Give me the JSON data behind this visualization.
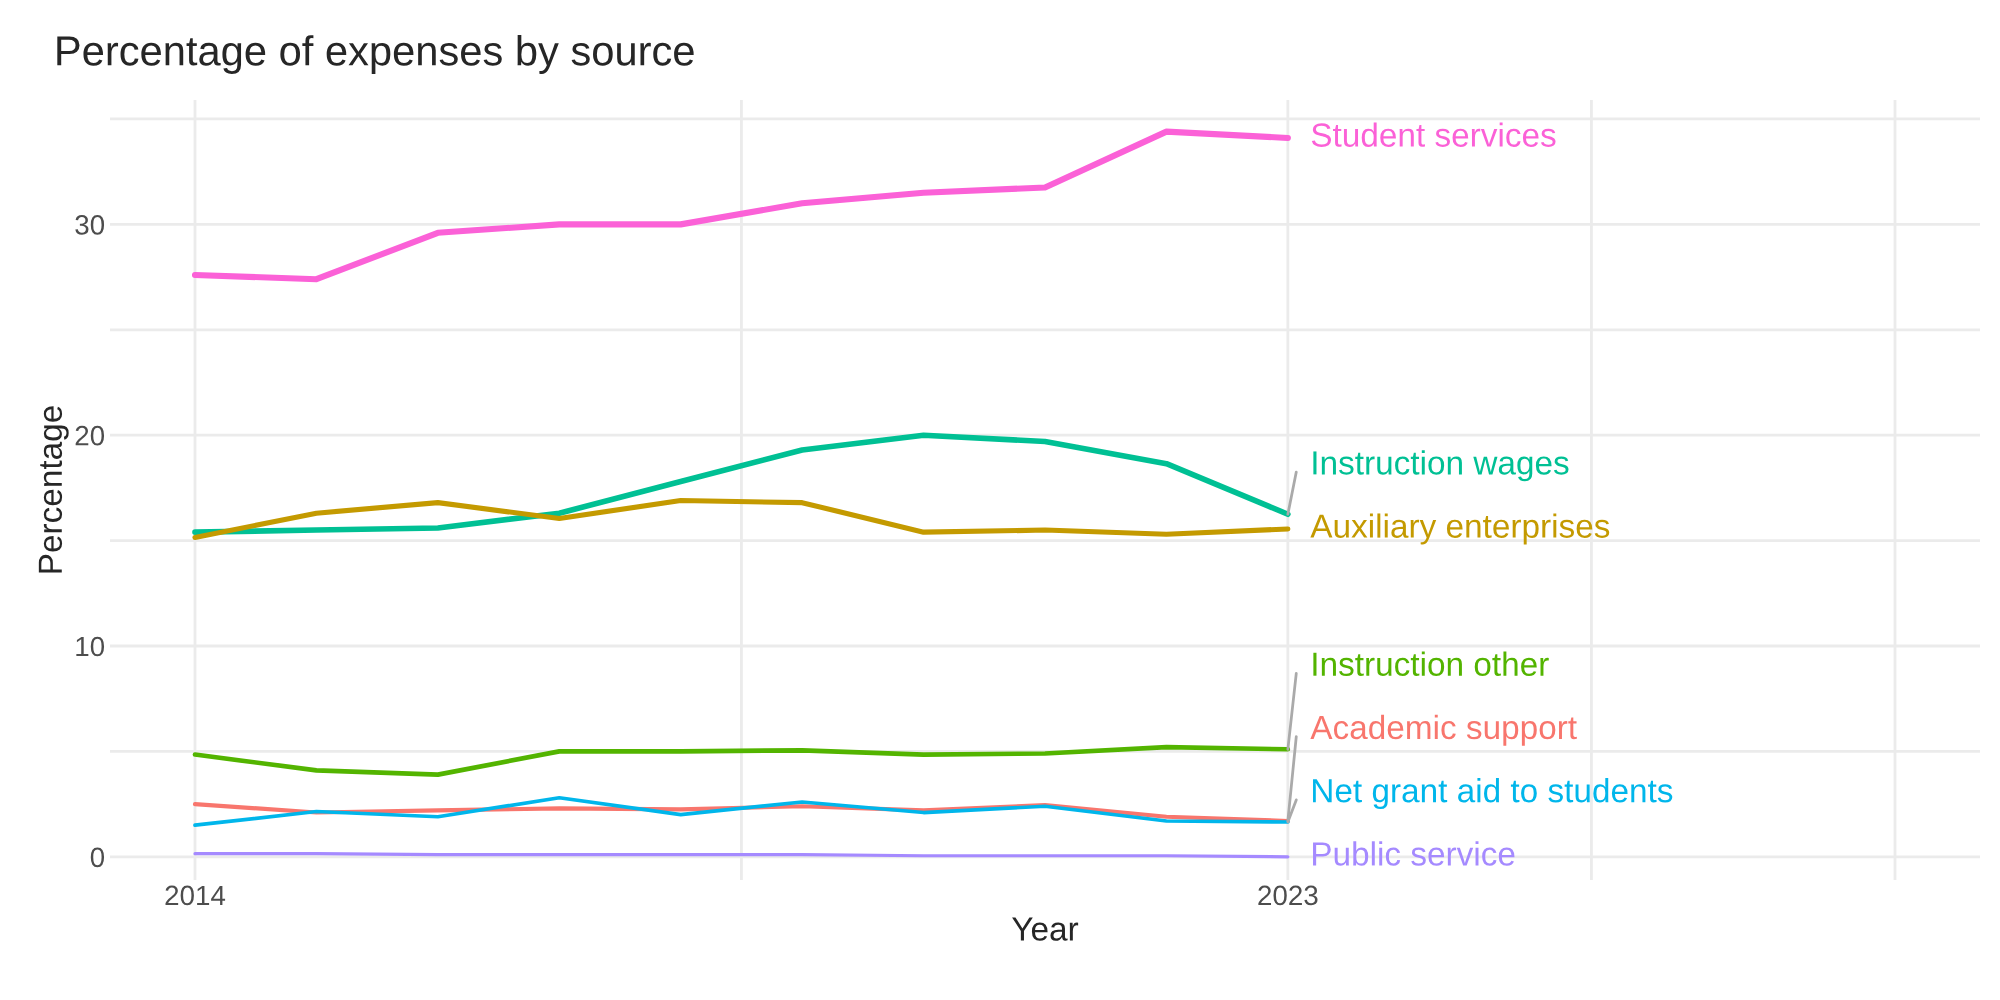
{
  "chart_data": {
    "type": "line",
    "title": "Percentage of expenses by source",
    "xlabel": "Year",
    "ylabel": "Percentage",
    "x": [
      2014,
      2015,
      2016,
      2017,
      2018,
      2019,
      2020,
      2021,
      2022,
      2023
    ],
    "series": [
      {
        "name": "Student services",
        "color": "#fb61d7",
        "values": [
          27.6,
          27.4,
          29.6,
          30.0,
          30.0,
          31.0,
          31.5,
          31.75,
          34.4,
          34.1
        ]
      },
      {
        "name": "Instruction wages",
        "color": "#00c094",
        "values": [
          15.4,
          15.5,
          15.6,
          16.3,
          17.8,
          19.3,
          20.0,
          19.7,
          18.65,
          16.25
        ]
      },
      {
        "name": "Auxiliary enterprises",
        "color": "#c49a00",
        "values": [
          15.15,
          16.3,
          16.8,
          16.05,
          16.9,
          16.8,
          15.4,
          15.5,
          15.3,
          15.55
        ]
      },
      {
        "name": "Instruction other",
        "color": "#53b400",
        "values": [
          4.85,
          4.1,
          3.9,
          5.0,
          5.0,
          5.05,
          4.85,
          4.9,
          5.2,
          5.1
        ]
      },
      {
        "name": "Academic support",
        "color": "#f8766d",
        "values": [
          2.5,
          2.1,
          2.2,
          2.3,
          2.25,
          2.4,
          2.2,
          2.45,
          1.9,
          1.7
        ]
      },
      {
        "name": "Net grant aid to students",
        "color": "#00b6eb",
        "values": [
          1.5,
          2.15,
          1.9,
          2.8,
          2.0,
          2.6,
          2.1,
          2.4,
          1.7,
          1.65
        ]
      },
      {
        "name": "Public service",
        "color": "#a58aff",
        "values": [
          0.15,
          0.15,
          0.1,
          0.1,
          0.1,
          0.1,
          0.05,
          0.05,
          0.05,
          0.0
        ]
      }
    ],
    "xlim": [
      2013.3,
      2028.7
    ],
    "ylim": [
      -1.1,
      35.9
    ],
    "xticks": [
      2014,
      {
        "value": 2018.5,
        "label": null
      },
      2023,
      {
        "value": 2025.5,
        "label": null
      },
      {
        "value": 2028,
        "label": null
      }
    ],
    "yticks": [
      0,
      {
        "value": 5,
        "label": null
      },
      10,
      {
        "value": 15,
        "label": null
      },
      20,
      {
        "value": 25,
        "label": null
      },
      30,
      {
        "value": 35,
        "label": null
      }
    ],
    "grid": true,
    "legend": false,
    "marker": "none",
    "line_style": "solid"
  }
}
